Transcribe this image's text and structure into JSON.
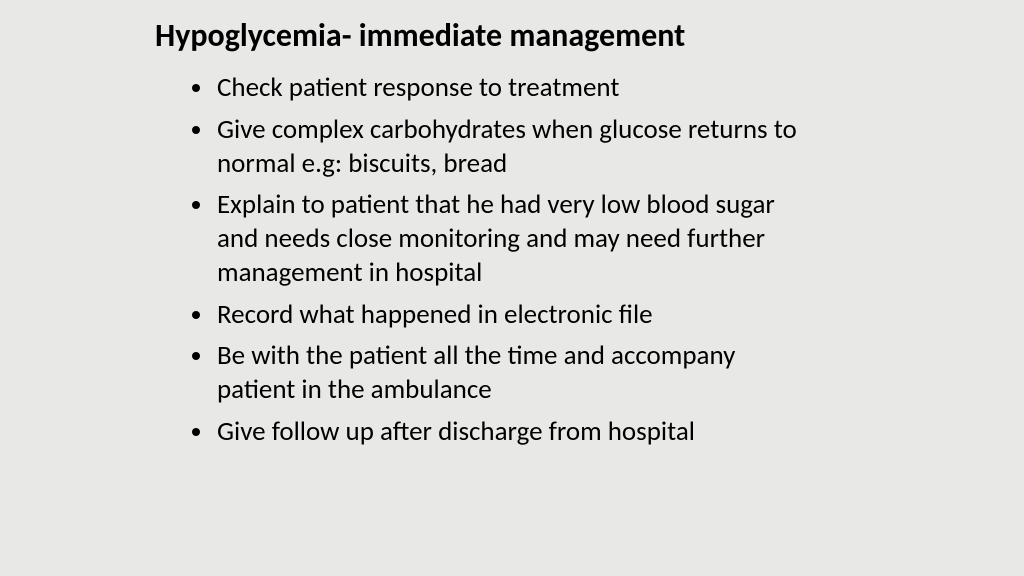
{
  "slide": {
    "title": "Hypoglycemia- immediate management",
    "bullets": [
      "Check patient response to treatment",
      "Give complex carbohydrates when glucose returns to normal e.g: biscuits, bread",
      "Explain to patient that he had very low blood sugar and needs close monitoring and may need further management in hospital",
      "Record what happened in electronic file",
      "Be with the patient all the time and accompany patient in the ambulance",
      "Give follow up after discharge from hospital"
    ],
    "background_color": "#e8e8e6",
    "text_color": "#000000",
    "title_fontsize": 32,
    "title_fontweight": 700,
    "bullet_fontsize": 27,
    "bullet_fontweight": 400
  }
}
